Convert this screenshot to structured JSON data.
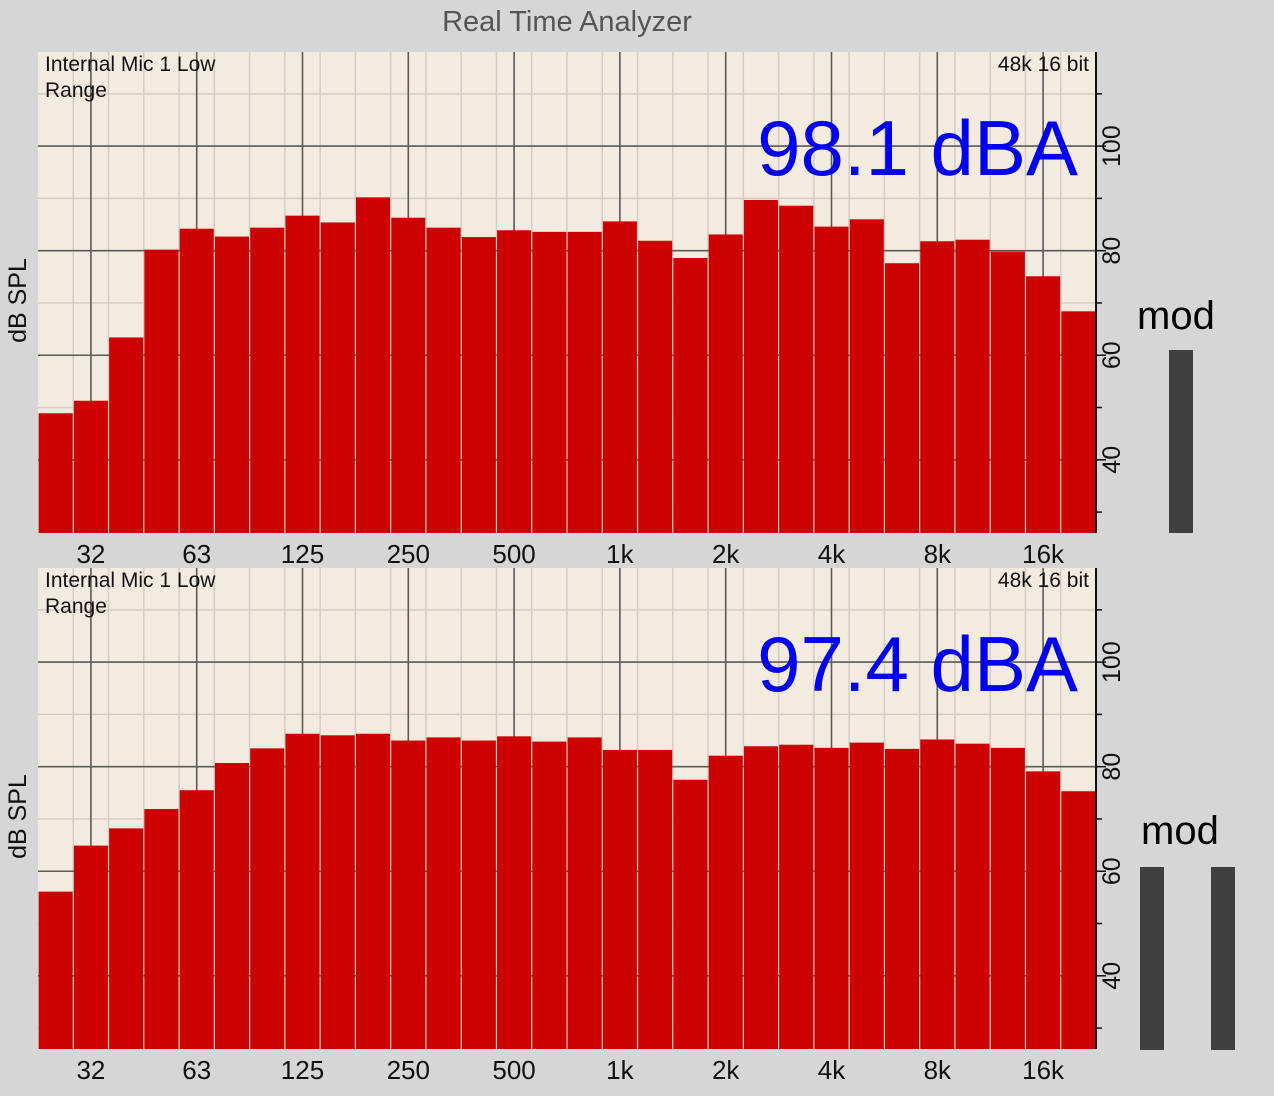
{
  "app": {
    "title": "Real Time Analyzer"
  },
  "colors": {
    "bar": "#cc0000",
    "plot_bg": "#f3ebe0",
    "grid": "#5a5a5a",
    "grid_minor": "#d4cdc4",
    "level_text": "#0000ee",
    "meter": "#404040",
    "panel_bg": "#d6d6d6"
  },
  "panels": [
    {
      "source_line1": "Internal Mic 1 Low",
      "source_line2": "Range",
      "format": "48k 16 bit",
      "level": "98.1 dBA",
      "meter_label": "mod",
      "meter_bars": [
        0.51
      ]
    },
    {
      "source_line1": "Internal Mic 1 Low",
      "source_line2": "Range",
      "format": "48k 16 bit",
      "level": "97.4 dBA",
      "meter_label": "mod",
      "meter_bars": [
        0.51,
        0.51
      ]
    }
  ],
  "chart_data": [
    {
      "type": "bar",
      "ylabel": "dB SPL",
      "ylim": [
        26,
        118
      ],
      "y_ticks": [
        40,
        60,
        80,
        100
      ],
      "x_tick_labels": [
        "32",
        "63",
        "125",
        "250",
        "500",
        "1k",
        "2k",
        "4k",
        "8k",
        "16k"
      ],
      "values": [
        48.9,
        51.3,
        63.4,
        80.2,
        84.2,
        82.7,
        84.4,
        86.7,
        85.4,
        90.2,
        86.3,
        84.4,
        82.6,
        83.9,
        83.6,
        83.6,
        85.6,
        81.9,
        78.6,
        83.1,
        89.7,
        88.6,
        84.6,
        86.0,
        77.6,
        81.8,
        82.1,
        79.8,
        75.1,
        68.4
      ],
      "grid": true
    },
    {
      "type": "bar",
      "ylabel": "dB SPL",
      "ylim": [
        26,
        118
      ],
      "y_ticks": [
        40,
        60,
        80,
        100
      ],
      "x_tick_labels": [
        "32",
        "63",
        "125",
        "250",
        "500",
        "1k",
        "2k",
        "4k",
        "8k",
        "16k"
      ],
      "values": [
        56.1,
        64.9,
        68.2,
        71.9,
        75.5,
        80.7,
        83.5,
        86.3,
        86.0,
        86.3,
        85.0,
        85.6,
        85.0,
        85.8,
        84.8,
        85.6,
        83.2,
        83.2,
        77.5,
        82.1,
        83.9,
        84.2,
        83.6,
        84.6,
        83.4,
        85.2,
        84.4,
        83.6,
        79.1,
        75.3
      ],
      "grid": true
    }
  ]
}
